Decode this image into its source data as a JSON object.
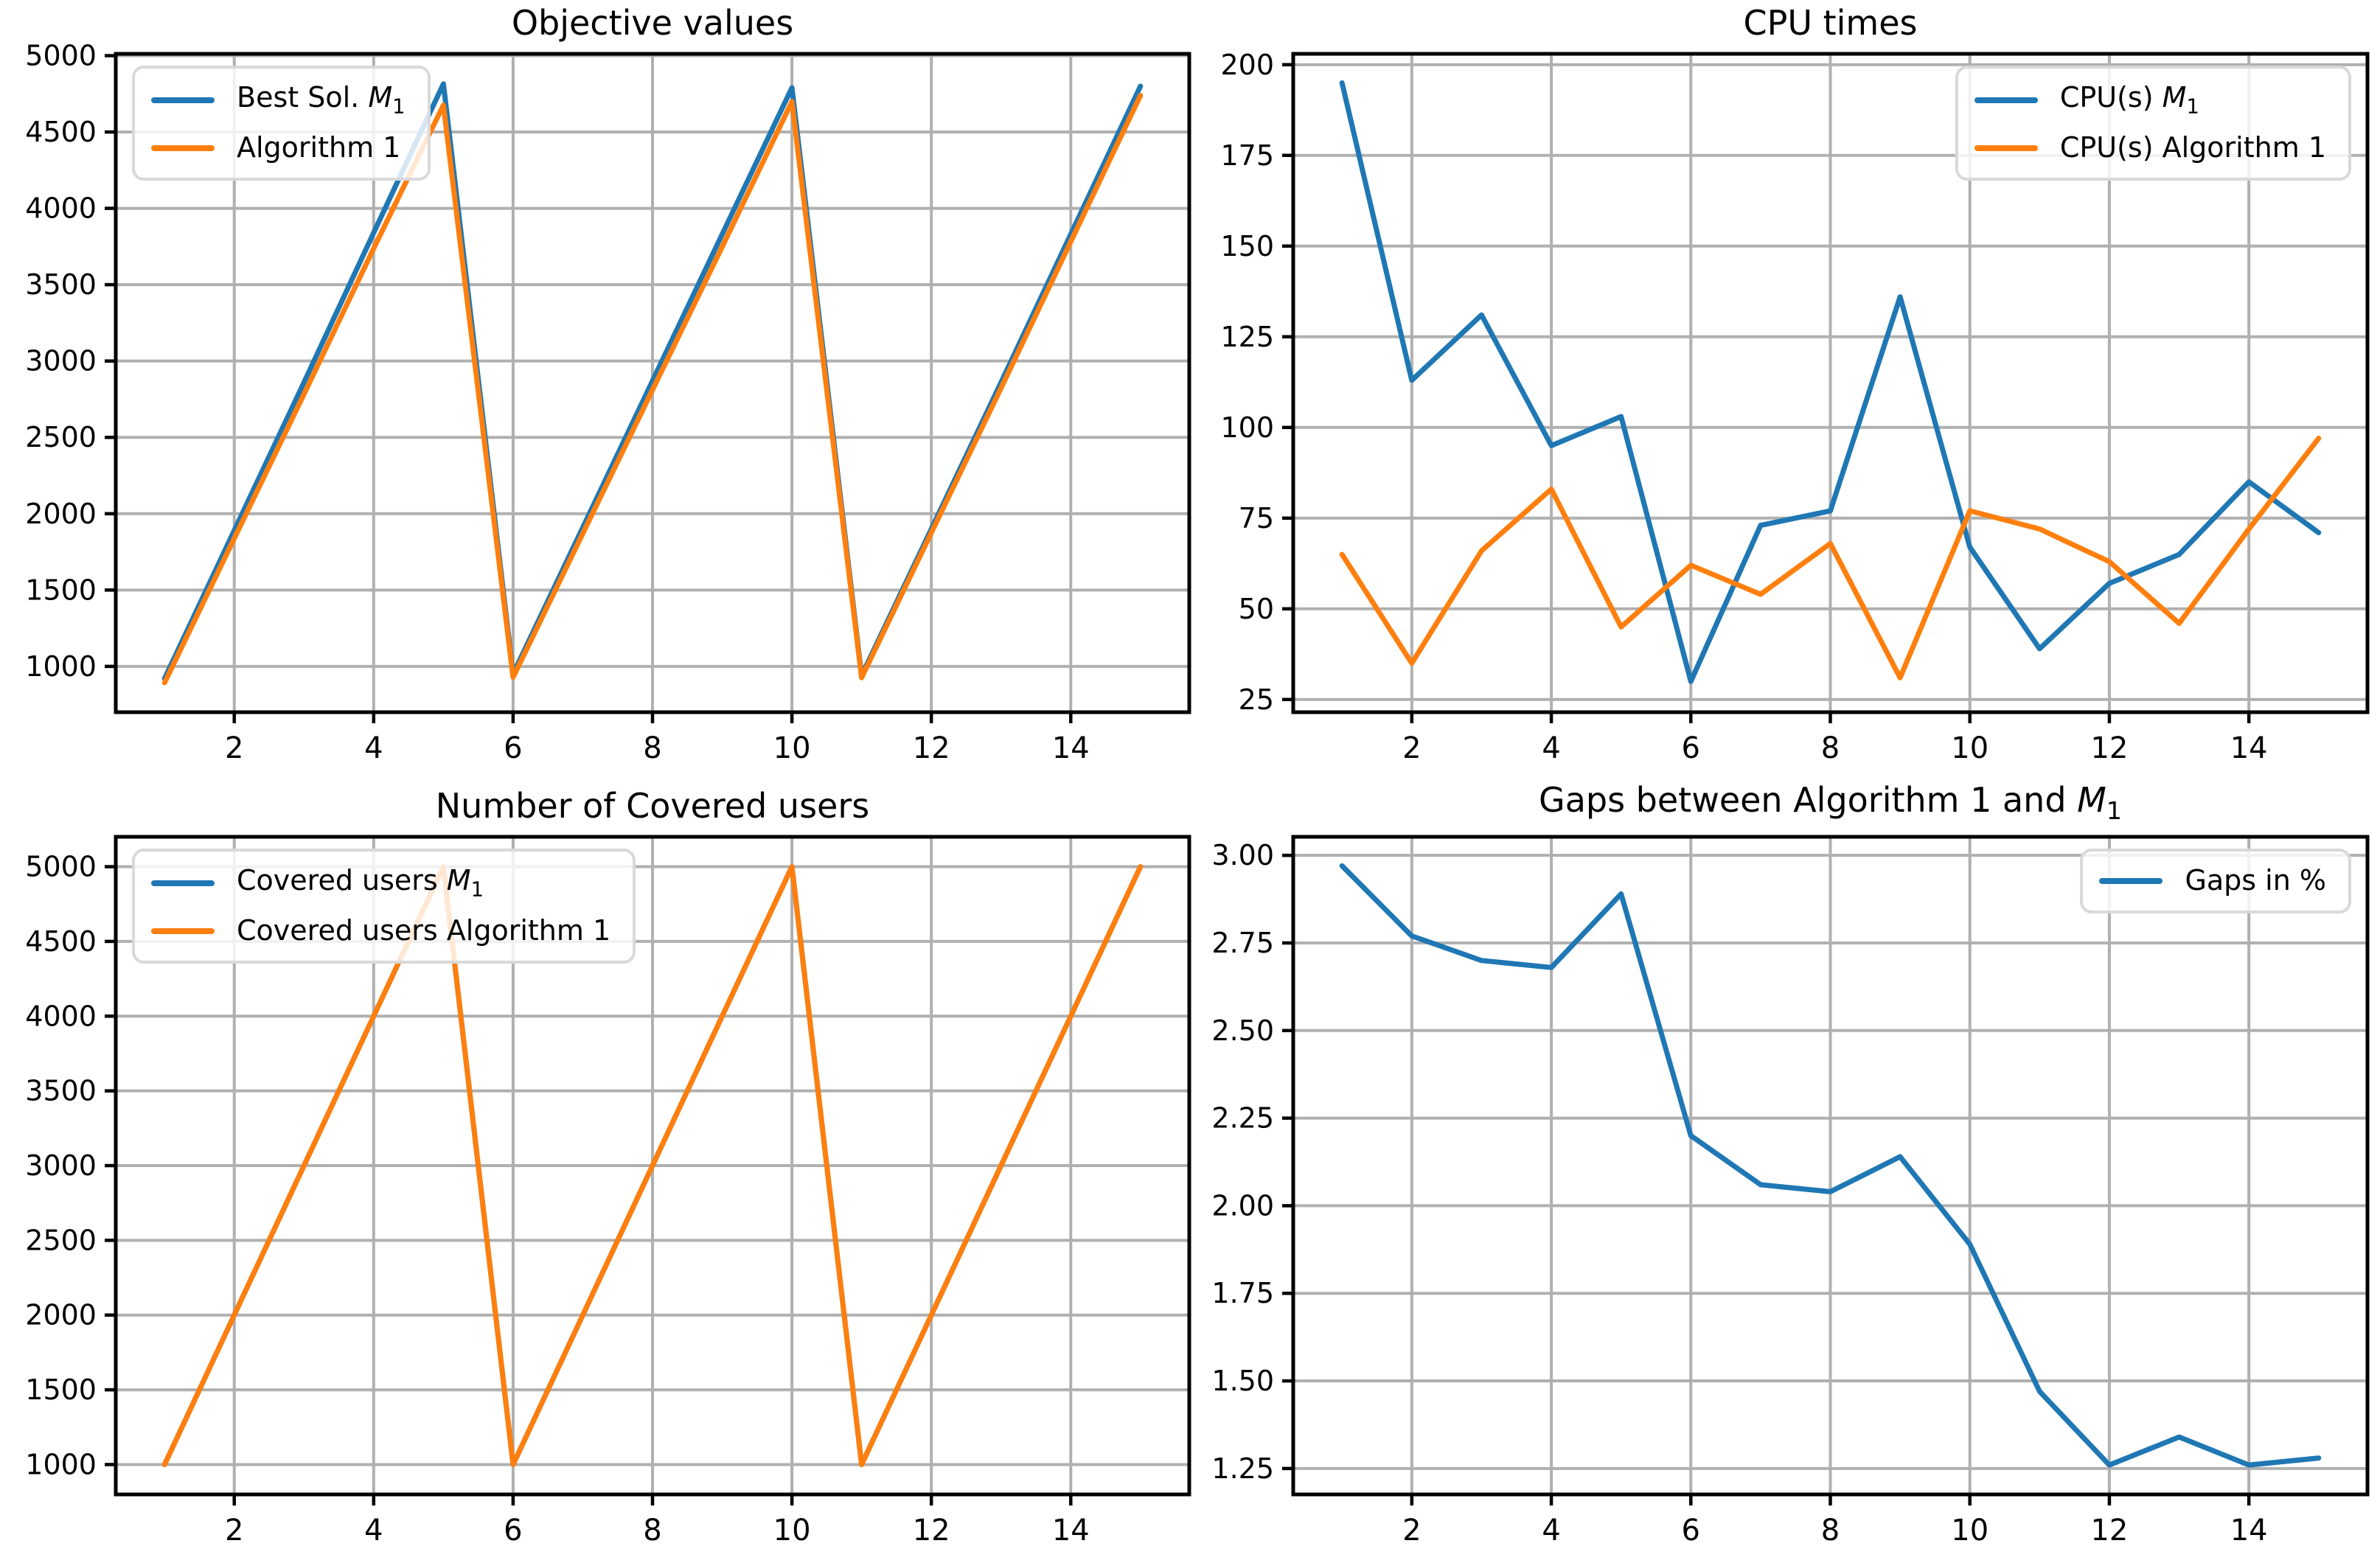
{
  "figure": {
    "background": "#ffffff"
  },
  "colors": {
    "blue": "#1f77b4",
    "orange": "#ff7f0e",
    "grid": "#b0b0b0",
    "axis": "#000000",
    "legend_edge": "#d9d9d9",
    "text": "#000000"
  },
  "chart_data": [
    {
      "id": "objective-values",
      "type": "line",
      "title": "Objective values",
      "xlabel": "",
      "ylabel": "",
      "grid": true,
      "legend_position": "upper-left",
      "x": [
        1,
        2,
        3,
        4,
        5,
        6,
        7,
        8,
        9,
        10,
        11,
        12,
        13,
        14,
        15
      ],
      "xlim": [
        0.3,
        15.7
      ],
      "ylim": [
        700,
        5012
      ],
      "xticks": [
        2,
        4,
        6,
        8,
        10,
        12,
        14
      ],
      "xtick_labels": [
        "2",
        "4",
        "6",
        "8",
        "10",
        "12",
        "14"
      ],
      "ytick_values": [
        1000,
        1500,
        2000,
        2500,
        3000,
        3500,
        4000,
        4500,
        5000
      ],
      "ytick_labels": [
        "1000",
        "1500",
        "2000",
        "2500",
        "3000",
        "3500",
        "4000",
        "4500",
        "5000"
      ],
      "series": [
        {
          "name": "Best Sol. M₁",
          "color": "#1f77b4",
          "values": [
            920,
            1890,
            2860,
            3840,
            4815,
            950,
            1910,
            2870,
            3830,
            4790,
            940,
            1900,
            2860,
            3830,
            4800
          ]
        },
        {
          "name": "Algorithm 1",
          "color": "#ff7f0e",
          "values": [
            893,
            1838,
            2783,
            3737,
            4676,
            929,
            1871,
            2811,
            3748,
            4699,
            926,
            1876,
            2822,
            3782,
            4739
          ]
        }
      ]
    },
    {
      "id": "cpu-times",
      "type": "line",
      "title": "CPU times",
      "xlabel": "",
      "ylabel": "",
      "grid": true,
      "legend_position": "upper-right",
      "x": [
        1,
        2,
        3,
        4,
        5,
        6,
        7,
        8,
        9,
        10,
        11,
        12,
        13,
        14,
        15
      ],
      "xlim": [
        0.3,
        15.7
      ],
      "ylim": [
        21.5,
        203
      ],
      "xticks": [
        2,
        4,
        6,
        8,
        10,
        12,
        14
      ],
      "xtick_labels": [
        "2",
        "4",
        "6",
        "8",
        "10",
        "12",
        "14"
      ],
      "ytick_values": [
        25,
        50,
        75,
        100,
        125,
        150,
        175,
        200
      ],
      "ytick_labels": [
        "25",
        "50",
        "75",
        "100",
        "125",
        "150",
        "175",
        "200"
      ],
      "series": [
        {
          "name": "CPU(s) M₁",
          "color": "#1f77b4",
          "values": [
            195,
            113,
            131,
            95,
            103,
            30,
            73,
            77,
            136,
            67,
            39,
            57,
            65,
            85,
            71
          ]
        },
        {
          "name": "CPU(s) Algorithm 1",
          "color": "#ff7f0e",
          "values": [
            65,
            35,
            66,
            83,
            45,
            62,
            54,
            68,
            31,
            77,
            72,
            63,
            46,
            72,
            97
          ]
        }
      ]
    },
    {
      "id": "covered-users",
      "type": "line",
      "title": "Number of Covered users",
      "xlabel": "",
      "ylabel": "",
      "grid": true,
      "legend_position": "upper-left",
      "x": [
        1,
        2,
        3,
        4,
        5,
        6,
        7,
        8,
        9,
        10,
        11,
        12,
        13,
        14,
        15
      ],
      "xlim": [
        0.3,
        15.7
      ],
      "ylim": [
        800,
        5200
      ],
      "xticks": [
        2,
        4,
        6,
        8,
        10,
        12,
        14
      ],
      "xtick_labels": [
        "2",
        "4",
        "6",
        "8",
        "10",
        "12",
        "14"
      ],
      "ytick_values": [
        1000,
        1500,
        2000,
        2500,
        3000,
        3500,
        4000,
        4500,
        5000
      ],
      "ytick_labels": [
        "1000",
        "1500",
        "2000",
        "2500",
        "3000",
        "3500",
        "4000",
        "4500",
        "5000"
      ],
      "series": [
        {
          "name": "Covered users M₁",
          "color": "#1f77b4",
          "values": [
            1000,
            2000,
            3000,
            4000,
            5000,
            1000,
            2000,
            3000,
            4000,
            5000,
            1000,
            2000,
            3000,
            4000,
            5000
          ]
        },
        {
          "name": "Covered users Algorithm 1",
          "color": "#ff7f0e",
          "values": [
            1000,
            2000,
            3000,
            4000,
            5000,
            1000,
            2000,
            3000,
            4000,
            5000,
            1000,
            2000,
            3000,
            4000,
            5000
          ]
        }
      ]
    },
    {
      "id": "gaps",
      "type": "line",
      "title": "Gaps between Algorithm 1 and M₁",
      "xlabel": "",
      "ylabel": "",
      "grid": true,
      "legend_position": "upper-right",
      "x": [
        1,
        2,
        3,
        4,
        5,
        6,
        7,
        8,
        9,
        10,
        11,
        12,
        13,
        14,
        15
      ],
      "xlim": [
        0.3,
        15.7
      ],
      "ylim": [
        1.176,
        3.053
      ],
      "xticks": [
        2,
        4,
        6,
        8,
        10,
        12,
        14
      ],
      "xtick_labels": [
        "2",
        "4",
        "6",
        "8",
        "10",
        "12",
        "14"
      ],
      "ytick_values": [
        1.25,
        1.5,
        1.75,
        2.0,
        2.25,
        2.5,
        2.75,
        3.0
      ],
      "ytick_labels": [
        "1.25",
        "1.50",
        "1.75",
        "2.00",
        "2.25",
        "2.50",
        "2.75",
        "3.00"
      ],
      "series": [
        {
          "name": "Gaps in %",
          "color": "#1f77b4",
          "values": [
            2.97,
            2.77,
            2.7,
            2.68,
            2.89,
            2.2,
            2.06,
            2.04,
            2.14,
            1.89,
            1.47,
            1.26,
            1.34,
            1.26,
            1.28
          ]
        }
      ]
    }
  ]
}
